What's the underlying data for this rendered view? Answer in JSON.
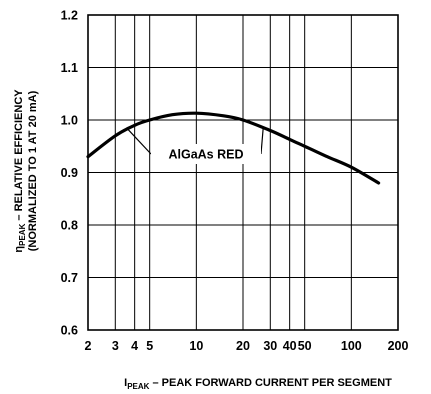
{
  "chart_data": {
    "type": "line",
    "x_scale": "log",
    "xlim": [
      2,
      200
    ],
    "ylim": [
      0.6,
      1.2
    ],
    "grid": true,
    "x_ticks": [
      2,
      3,
      4,
      5,
      10,
      20,
      30,
      40,
      50,
      100,
      200
    ],
    "x_tick_labels": [
      "2",
      "3",
      "4",
      "5",
      "10",
      "20",
      "30",
      "40",
      "50",
      "100",
      "200"
    ],
    "y_ticks": [
      0.6,
      0.7,
      0.8,
      0.9,
      1.0,
      1.1,
      1.2
    ],
    "y_tick_labels": [
      "0.6",
      "0.7",
      "0.8",
      "0.9",
      "1.0",
      "1.1",
      "1.2"
    ],
    "xlabel": {
      "main": "I",
      "sub": "PEAK",
      "rest": " – PEAK FORWARD CURRENT PER SEGMENT"
    },
    "ylabel": {
      "line1_main": "η",
      "line1_sub": "PEAK",
      "line1_rest": " – RELATIVE EFFICIENCY",
      "line2": "(NORMALIZED TO 1 AT 20 mA)"
    },
    "annotation": "AlGaAs RED",
    "series": [
      {
        "name": "AlGaAs RED",
        "x": [
          2,
          3,
          4,
          5,
          7,
          10,
          15,
          20,
          30,
          40,
          50,
          70,
          100,
          150
        ],
        "y": [
          0.93,
          0.97,
          0.99,
          1.0,
          1.01,
          1.013,
          1.008,
          1.0,
          0.98,
          0.963,
          0.95,
          0.93,
          0.91,
          0.88
        ]
      }
    ]
  }
}
